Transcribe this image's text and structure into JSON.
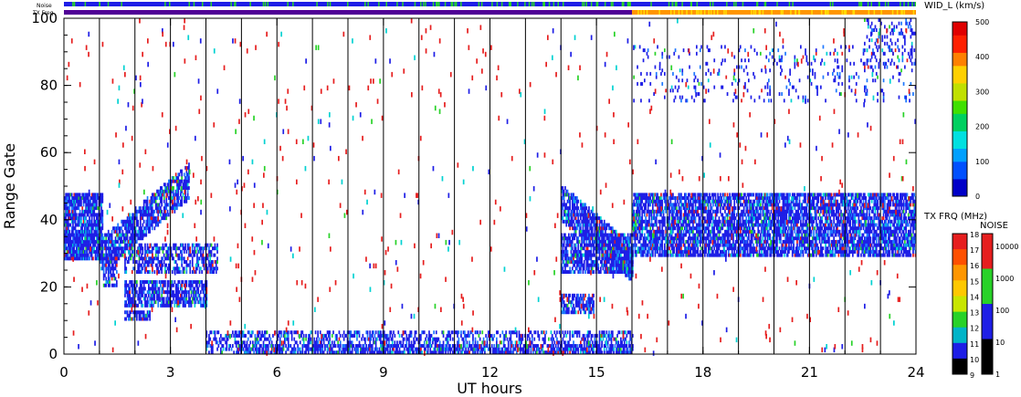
{
  "header": {
    "noise_label": "Noise",
    "txfreq_label": "TX Freq"
  },
  "chart_data": {
    "type": "heatmap",
    "title": "",
    "xlabel": "UT hours",
    "ylabel": "Range Gate",
    "xlim": [
      0,
      24
    ],
    "ylim": [
      0,
      100
    ],
    "xticks": [
      "0",
      "3",
      "6",
      "9",
      "12",
      "15",
      "18",
      "21",
      "24"
    ],
    "yticks": [
      "0",
      "20",
      "40",
      "60",
      "80",
      "100"
    ],
    "grid": "vertical lines every 1 hour",
    "background": "#ffffff",
    "width_scale": {
      "label": "WID_L (km/s)",
      "range": [
        0,
        500
      ],
      "ticks": [
        "500",
        "400",
        "300",
        "200",
        "100",
        "0"
      ]
    },
    "txfreq_scale": {
      "label": "TX FRQ (MHz)",
      "ticks": [
        "18",
        "17",
        "16",
        "15",
        "14",
        "13",
        "12",
        "11",
        "10",
        "9"
      ]
    },
    "noise_scale": {
      "label": "NOISE",
      "ticks": [
        "10000",
        "1000",
        "100",
        "10",
        "1"
      ]
    },
    "echo_regions": [
      {
        "t0": 0.0,
        "t1": 1.1,
        "g0": 28,
        "g1": 48,
        "level": "blue"
      },
      {
        "t0": 1.0,
        "t1": 3.5,
        "g0": 22,
        "g1": 55,
        "level": "blue",
        "shape": "rising"
      },
      {
        "t0": 1.7,
        "t1": 4.3,
        "g0": 14,
        "g1": 33,
        "level": "blue"
      },
      {
        "t0": 1.7,
        "t1": 2.4,
        "g0": 10,
        "g1": 13,
        "level": "blue"
      },
      {
        "t0": 4.0,
        "t1": 16.0,
        "g0": 0,
        "g1": 7,
        "level": "blue"
      },
      {
        "t0": 14.0,
        "t1": 16.0,
        "g0": 22,
        "g1": 50,
        "level": "blue",
        "shape": "falling"
      },
      {
        "t0": 14.0,
        "t1": 14.9,
        "g0": 12,
        "g1": 18,
        "level": "blue"
      },
      {
        "t0": 16.0,
        "t1": 24.0,
        "g0": 27,
        "g1": 50,
        "level": "blue"
      },
      {
        "t0": 16.0,
        "t1": 24.0,
        "g0": 75,
        "g1": 100,
        "level": "sparse"
      }
    ],
    "txfreq_bar": {
      "before_16h": "purple",
      "after_16h": "orange"
    },
    "noise_bar": "blue with green spikes"
  },
  "colors": {
    "blue": "#1e1ee6",
    "lightblue": "#1e78ff",
    "cyan": "#00d2d2",
    "green": "#28d228",
    "red": "#e61e1e",
    "orange": "#ff9600",
    "purple": "#500096",
    "yellow": "#ffdc00"
  }
}
